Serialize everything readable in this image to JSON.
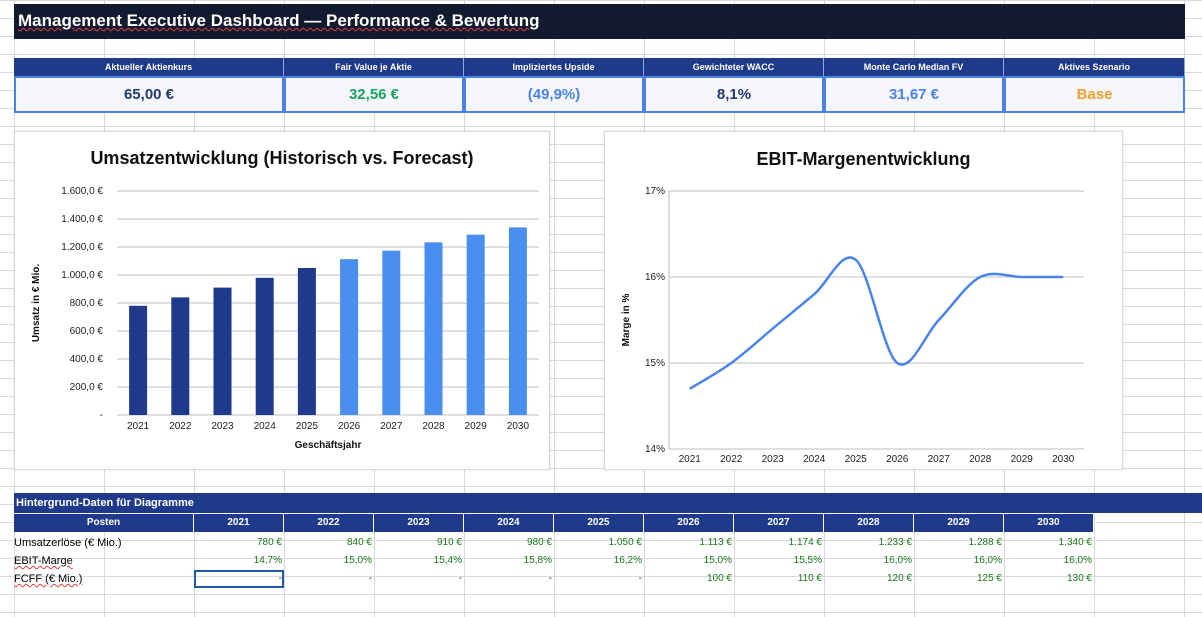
{
  "title": "Management Executive Dashboard — Performance & Bewertung",
  "kpis": [
    {
      "label": "Aktueller Aktienkurs",
      "value": "65,00 €",
      "color": "#1f3a6e"
    },
    {
      "label": "Fair Value je Aktie",
      "value": "32,56 €",
      "color": "#1aa35a"
    },
    {
      "label": "Impliziertes Upside",
      "value": "(49,9%)",
      "color": "#4b82e6"
    },
    {
      "label": "Gewichteter WACC",
      "value": "8,1%",
      "color": "#1f3a6e"
    },
    {
      "label": "Monte Carlo Median FV",
      "value": "31,67 €",
      "color": "#4b82e6"
    },
    {
      "label": "Aktives Szenario",
      "value": "Base",
      "color": "#f0a030"
    }
  ],
  "chart_data": [
    {
      "type": "bar",
      "title": "Umsatzentwicklung (Historisch vs. Forecast)",
      "xlabel": "Geschäftsjahr",
      "ylabel": "Umsatz in € Mio.",
      "categories": [
        "2021",
        "2022",
        "2023",
        "2024",
        "2025",
        "2026",
        "2027",
        "2028",
        "2029",
        "2030"
      ],
      "values": [
        780,
        840,
        910,
        980,
        1050,
        1113,
        1174,
        1233,
        1288,
        1340
      ],
      "colors": [
        "#1f3a8a",
        "#1f3a8a",
        "#1f3a8a",
        "#1f3a8a",
        "#1f3a8a",
        "#4a8ef0",
        "#4a8ef0",
        "#4a8ef0",
        "#4a8ef0",
        "#4a8ef0"
      ],
      "ylim": [
        0,
        1600
      ],
      "yticks": [
        "-",
        "200,0 €",
        "400,0 €",
        "600,0 €",
        "800,0 €",
        "1.000,0 €",
        "1.200,0 €",
        "1.400,0 €",
        "1.600,0 €"
      ],
      "grid": true
    },
    {
      "type": "line",
      "title": "EBIT-Margenentwicklung",
      "ylabel": "Marge in %",
      "categories": [
        "2021",
        "2022",
        "2023",
        "2024",
        "2025",
        "2026",
        "2027",
        "2028",
        "2029",
        "2030"
      ],
      "values": [
        14.7,
        15.0,
        15.4,
        15.8,
        16.2,
        15.0,
        15.5,
        16.0,
        16.0,
        16.0
      ],
      "ylim": [
        14,
        17
      ],
      "yticks": [
        "14%",
        "15%",
        "16%",
        "17%"
      ],
      "line_color": "#4a84e8",
      "grid": true
    }
  ],
  "table": {
    "banner": "Hintergrund-Daten für Diagramme",
    "header_label": "Posten",
    "years": [
      "2021",
      "2022",
      "2023",
      "2024",
      "2025",
      "2026",
      "2027",
      "2028",
      "2029",
      "2030"
    ],
    "rows": [
      {
        "label": "Umsatzerlöse (€ Mio.)",
        "cells": [
          "780 €",
          "840 €",
          "910 €",
          "980 €",
          "1.050 €",
          "1.113 €",
          "1.174 €",
          "1.233 €",
          "1.288 €",
          "1.340 €"
        ]
      },
      {
        "label": "EBIT-Marge",
        "cells": [
          "14,7%",
          "15,0%",
          "15,4%",
          "15,8%",
          "16,2%",
          "15,0%",
          "15,5%",
          "16,0%",
          "16,0%",
          "16,0%"
        ]
      },
      {
        "label": "FCFF (€ Mio.)",
        "cells": [
          "-",
          "-",
          "-",
          "-",
          "-",
          "100 €",
          "110 €",
          "120 €",
          "125 €",
          "130 €"
        ]
      }
    ]
  }
}
